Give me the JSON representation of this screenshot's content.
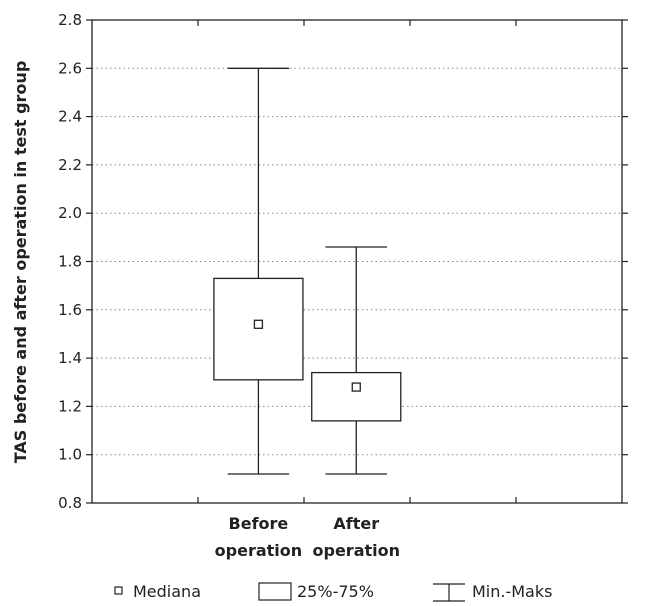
{
  "chart_data": {
    "type": "boxplot",
    "ylabel": "TAS before and after operation in test group",
    "xlabel": "",
    "ylim": [
      0.8,
      2.8
    ],
    "yticks": [
      "0.8",
      "1.0",
      "1.2",
      "1.4",
      "1.6",
      "1.8",
      "2.0",
      "2.2",
      "2.4",
      "2.6",
      "2.8"
    ],
    "grid": "horizontal-dotted",
    "categories": [
      {
        "line1": "Before",
        "line2": "operation"
      },
      {
        "line1": "After",
        "line2": "operation"
      }
    ],
    "boxes": [
      {
        "median": 1.54,
        "q1": 1.31,
        "q3": 1.73,
        "min": 0.92,
        "max": 2.6
      },
      {
        "median": 1.28,
        "q1": 1.14,
        "q3": 1.34,
        "min": 0.92,
        "max": 1.86
      }
    ],
    "legend": {
      "placement": "bottom",
      "median": "Mediana",
      "box": "25%-75%",
      "whisker": "Min.-Maks"
    }
  }
}
